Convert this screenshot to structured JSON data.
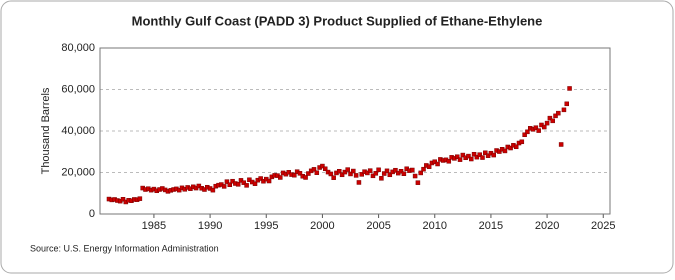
{
  "chart_data": {
    "type": "scatter",
    "title": "Monthly Gulf Coast (PADD 3) Product Supplied of Ethane-Ethylene",
    "y_label": "Thousand Barrels",
    "source": "Source: U.S. Energy Information Administration",
    "series": [
      {
        "name": "Ethane-Ethylene",
        "color": "#cc0000",
        "x": [
          1981,
          1981.25,
          1981.5,
          1981.75,
          1982,
          1982.25,
          1982.5,
          1982.75,
          1983,
          1983.25,
          1983.5,
          1983.75,
          1984,
          1984.25,
          1984.5,
          1984.75,
          1985,
          1985.25,
          1985.5,
          1985.75,
          1986,
          1986.25,
          1986.5,
          1986.75,
          1987,
          1987.25,
          1987.5,
          1987.75,
          1988,
          1988.25,
          1988.5,
          1988.75,
          1989,
          1989.25,
          1989.5,
          1989.75,
          1990,
          1990.25,
          1990.5,
          1990.75,
          1991,
          1991.25,
          1991.5,
          1991.75,
          1992,
          1992.25,
          1992.5,
          1992.75,
          1993,
          1993.25,
          1993.5,
          1993.75,
          1994,
          1994.25,
          1994.5,
          1994.75,
          1995,
          1995.25,
          1995.5,
          1995.75,
          1996,
          1996.25,
          1996.5,
          1996.75,
          1997,
          1997.25,
          1997.5,
          1997.75,
          1998,
          1998.25,
          1998.5,
          1998.75,
          1999,
          1999.25,
          1999.5,
          1999.75,
          2000,
          2000.25,
          2000.5,
          2000.75,
          2001,
          2001.25,
          2001.5,
          2001.75,
          2002,
          2002.25,
          2002.5,
          2002.75,
          2003,
          2003.25,
          2003.5,
          2003.75,
          2004,
          2004.25,
          2004.5,
          2004.75,
          2005,
          2005.25,
          2005.5,
          2005.75,
          2006,
          2006.25,
          2006.5,
          2006.75,
          2007,
          2007.25,
          2007.5,
          2007.75,
          2008,
          2008.25,
          2008.5,
          2008.75,
          2009,
          2009.25,
          2009.5,
          2009.75,
          2010,
          2010.25,
          2010.5,
          2010.75,
          2011,
          2011.25,
          2011.5,
          2011.75,
          2012,
          2012.25,
          2012.5,
          2012.75,
          2013,
          2013.25,
          2013.5,
          2013.75,
          2014,
          2014.25,
          2014.5,
          2014.75,
          2015,
          2015.25,
          2015.5,
          2015.75,
          2016,
          2016.25,
          2016.5,
          2016.75,
          2017,
          2017.25,
          2017.5,
          2017.75,
          2018,
          2018.25,
          2018.5,
          2018.75,
          2019,
          2019.25,
          2019.5,
          2019.75,
          2020,
          2020.25,
          2020.5,
          2020.75,
          2021,
          2021.25,
          2021.5,
          2021.75,
          2022
        ],
        "values": [
          7200,
          6800,
          7000,
          6500,
          6200,
          7100,
          5800,
          6600,
          6400,
          7000,
          6900,
          7400,
          12500,
          11800,
          12200,
          11500,
          12000,
          11200,
          11800,
          12300,
          11600,
          10900,
          11400,
          11800,
          12100,
          11500,
          12600,
          11900,
          12800,
          12200,
          13100,
          12500,
          13500,
          12400,
          11800,
          12900,
          12300,
          11500,
          13400,
          13900,
          14200,
          13300,
          15600,
          14100,
          15800,
          14700,
          14300,
          16200,
          15100,
          13800,
          16500,
          15400,
          14600,
          16300,
          17100,
          15800,
          16800,
          15900,
          17900,
          18600,
          18500,
          17600,
          19800,
          19200,
          20100,
          19000,
          18700,
          20400,
          19600,
          18200,
          17600,
          19500,
          20800,
          21500,
          19900,
          22400,
          23100,
          21800,
          20200,
          19300,
          17500,
          19800,
          20600,
          18900,
          20200,
          21400,
          19300,
          20700,
          18600,
          15200,
          19100,
          20400,
          19800,
          20900,
          18400,
          19600,
          21300,
          17200,
          19500,
          20800,
          18900,
          20300,
          21100,
          19700,
          20600,
          19400,
          21800,
          20900,
          21200,
          18300,
          15100,
          19800,
          21600,
          23400,
          22800,
          24600,
          25200,
          24100,
          26300,
          25800,
          26100,
          25400,
          27300,
          26800,
          27600,
          26200,
          28400,
          27100,
          27900,
          26500,
          28800,
          27400,
          28600,
          27200,
          29500,
          28100,
          29300,
          28400,
          30600,
          30100,
          31200,
          30400,
          32300,
          31800,
          33100,
          32400,
          34200,
          34800,
          38200,
          39600,
          41300,
          40800,
          41600,
          40200,
          42900,
          41900,
          43800,
          46200,
          44900,
          47300,
          48600,
          33500,
          50200,
          53100,
          60500
        ]
      }
    ],
    "xlim": [
      1980.2,
      2025.6
    ],
    "xticks": [
      1985,
      1990,
      1995,
      2000,
      2005,
      2010,
      2015,
      2020,
      2025
    ],
    "ylim": [
      0,
      80000
    ],
    "yticks": [
      0,
      {
        "value": 20000,
        "label": "20,000"
      },
      {
        "value": 40000,
        "label": "40,000"
      },
      {
        "value": 60000,
        "label": "60,000"
      },
      {
        "value": 80000,
        "label": "80,000"
      }
    ],
    "grid": true
  }
}
